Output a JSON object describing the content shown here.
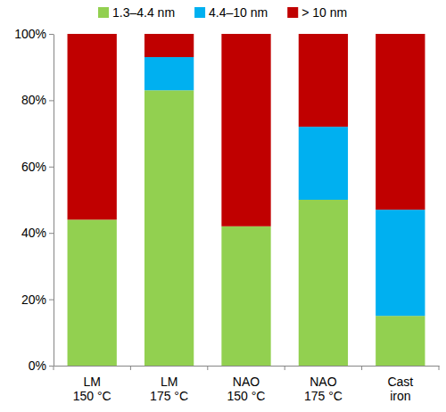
{
  "chart_data": {
    "type": "bar",
    "stacked": true,
    "legend": "top",
    "grid": false,
    "categories": [
      "LM 150 °C",
      "LM 175 °C",
      "NAO 150 °C",
      "NAO 175 °C",
      "Cast iron"
    ],
    "series": [
      {
        "name": "1.3–4.4 nm",
        "color": "#92d050",
        "values": [
          44,
          83,
          42,
          50,
          15
        ]
      },
      {
        "name": "4.4–10 nm",
        "color": "#00b0f0",
        "values": [
          0,
          10,
          0,
          22,
          32
        ]
      },
      {
        "name": "> 10 nm",
        "color": "#c00000",
        "values": [
          56,
          7,
          58,
          28,
          53
        ]
      }
    ],
    "ylim": [
      0,
      100
    ],
    "yticks": [
      {
        "value": 0,
        "label": "0%"
      },
      {
        "value": 20,
        "label": "20%"
      },
      {
        "value": 40,
        "label": "40%"
      },
      {
        "value": 60,
        "label": "60%"
      },
      {
        "value": 80,
        "label": "80%"
      },
      {
        "value": 100,
        "label": "100%"
      }
    ]
  }
}
